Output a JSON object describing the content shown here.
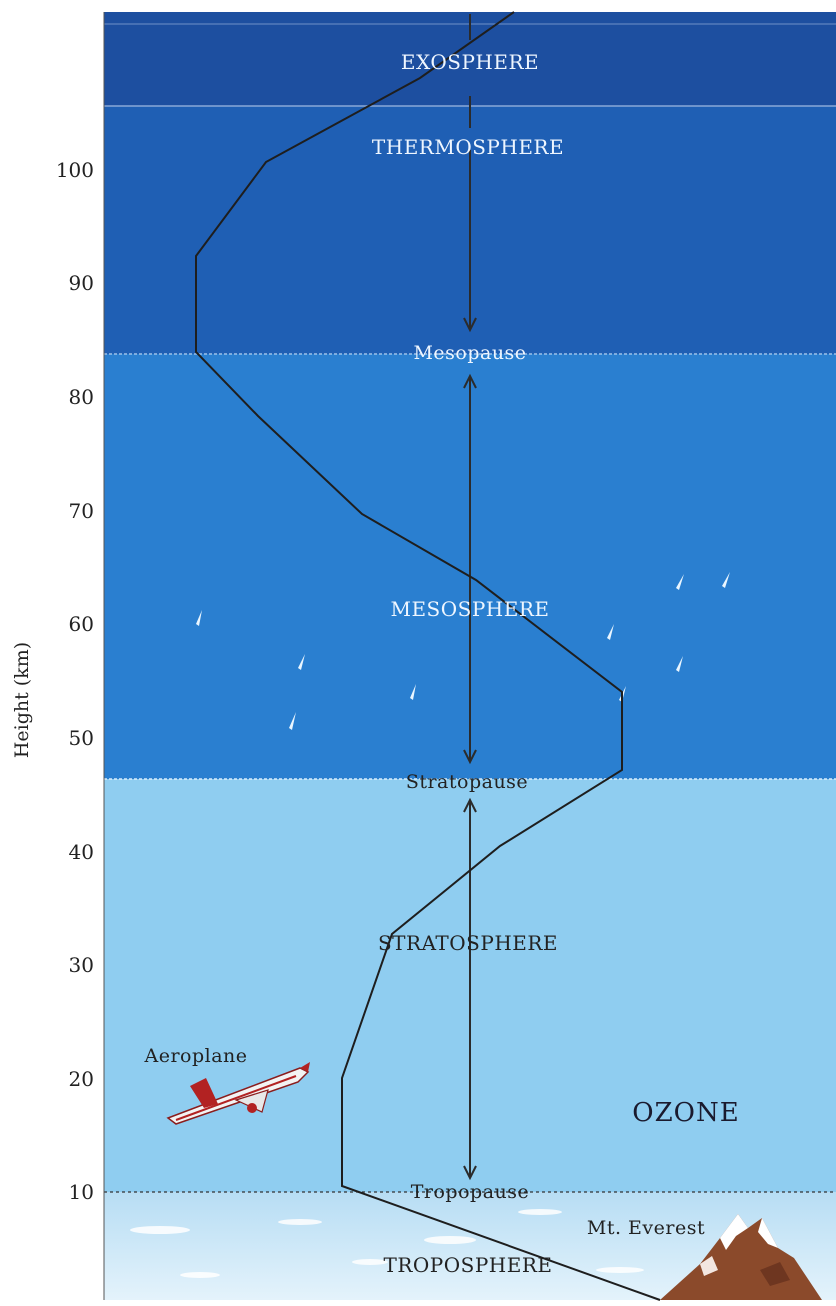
{
  "axis": {
    "label": "Height (km)",
    "ticks": [
      "100",
      "90",
      "80",
      "70",
      "60",
      "50",
      "40",
      "30",
      "20",
      "10"
    ]
  },
  "layers": {
    "exosphere": "EXOSPHERE",
    "thermosphere": "THERMOSPHERE",
    "mesopause": "Mesopause",
    "mesosphere": "MESOSPHERE",
    "stratopause": "Stratopause",
    "stratosphere": "STRATOSPHERE",
    "tropopause": "Tropopause",
    "troposphere": "TROPOSPHERE"
  },
  "annotations": {
    "aeroplane": "Aeroplane",
    "ozone": "OZONE",
    "everest": "Mt. Everest"
  },
  "colors": {
    "exosphere": "#1d4fa0",
    "thermosphere": "#1f5fb4",
    "mesosphere": "#2a7fd0",
    "stratosphere": "#8fcdf0",
    "troposphere": "#c6e6f7"
  }
}
